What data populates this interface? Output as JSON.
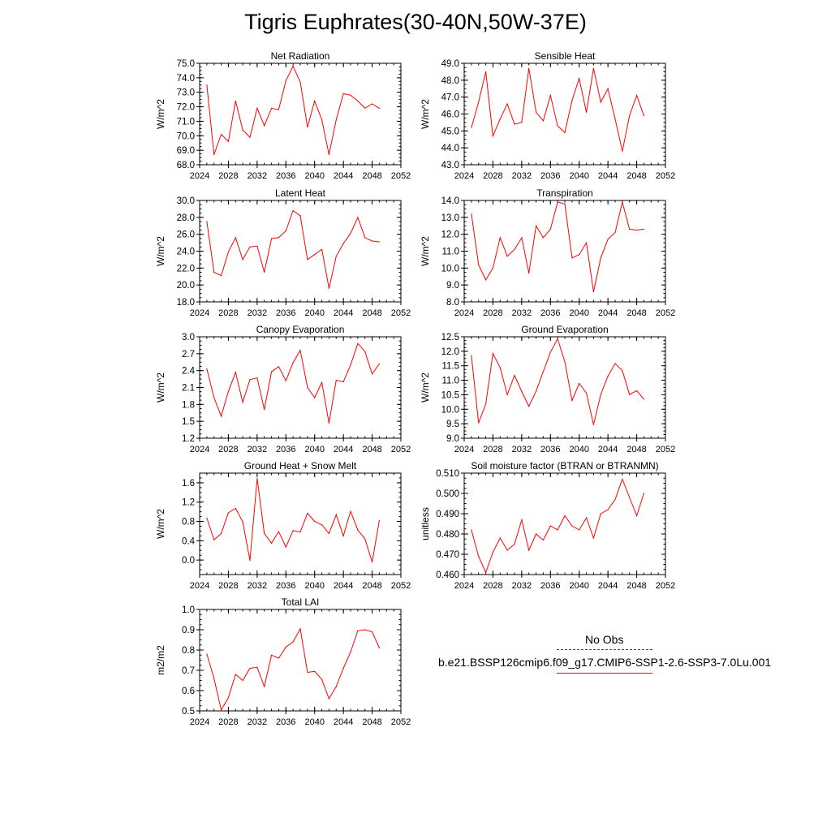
{
  "title": "Tigris Euphrates(30-40N,50W-37E)",
  "legend": {
    "obs_label": "No Obs",
    "obs_color": "#3a3aa0",
    "case_label": "b.e21.BSSP126cmip6.f09_g17.CMIP6-SSP1-2.6-SSP3-7.0Lu.001",
    "case_color": "#ff0000"
  },
  "chart_data": [
    {
      "type": "line",
      "title": "Net Radiation",
      "ylabel": "W/m^2",
      "xlim": [
        2024,
        2052
      ],
      "ylim": [
        68.0,
        75.0
      ],
      "xticks": [
        2024,
        2028,
        2032,
        2036,
        2040,
        2044,
        2048,
        2052
      ],
      "yticks": [
        "68.0",
        "69.0",
        "70.0",
        "71.0",
        "72.0",
        "73.0",
        "74.0",
        "75.0"
      ],
      "x": [
        2025,
        2026,
        2027,
        2028,
        2029,
        2030,
        2031,
        2032,
        2033,
        2034,
        2035,
        2036,
        2037,
        2038,
        2039,
        2040,
        2041,
        2042,
        2043,
        2044,
        2045,
        2046,
        2047,
        2048,
        2049
      ],
      "values": [
        73.5,
        68.7,
        70.1,
        69.6,
        72.4,
        70.4,
        69.9,
        71.9,
        70.7,
        71.9,
        71.8,
        73.8,
        74.8,
        73.7,
        70.6,
        72.4,
        71.1,
        68.7,
        71.1,
        72.9,
        72.8,
        72.4,
        71.9,
        72.2,
        71.9
      ]
    },
    {
      "type": "line",
      "title": "Sensible Heat",
      "ylabel": "W/m^2",
      "xlim": [
        2024,
        2052
      ],
      "ylim": [
        43.0,
        49.0
      ],
      "xticks": [
        2024,
        2028,
        2032,
        2036,
        2040,
        2044,
        2048,
        2052
      ],
      "yticks": [
        "43.0",
        "44.0",
        "45.0",
        "46.0",
        "47.0",
        "48.0",
        "49.0"
      ],
      "x": [
        2025,
        2026,
        2027,
        2028,
        2029,
        2030,
        2031,
        2032,
        2033,
        2034,
        2035,
        2036,
        2037,
        2038,
        2039,
        2040,
        2041,
        2042,
        2043,
        2044,
        2045,
        2046,
        2047,
        2048,
        2049
      ],
      "values": [
        45.2,
        46.7,
        48.5,
        44.7,
        45.7,
        46.6,
        45.4,
        45.5,
        48.7,
        46.1,
        45.6,
        47.1,
        45.3,
        44.9,
        46.8,
        48.1,
        46.1,
        48.7,
        46.7,
        47.5,
        45.7,
        43.8,
        45.9,
        47.1,
        45.9
      ]
    },
    {
      "type": "line",
      "title": "Latent Heat",
      "ylabel": "W/m^2",
      "xlim": [
        2024,
        2052
      ],
      "ylim": [
        18.0,
        30.0
      ],
      "xticks": [
        2024,
        2028,
        2032,
        2036,
        2040,
        2044,
        2048,
        2052
      ],
      "yticks": [
        "18.0",
        "20.0",
        "22.0",
        "24.0",
        "26.0",
        "28.0",
        "30.0"
      ],
      "x": [
        2025,
        2026,
        2027,
        2028,
        2029,
        2030,
        2031,
        2032,
        2033,
        2034,
        2035,
        2036,
        2037,
        2038,
        2039,
        2040,
        2041,
        2042,
        2043,
        2044,
        2045,
        2046,
        2047,
        2048,
        2049
      ],
      "values": [
        27.5,
        21.5,
        21.1,
        23.9,
        25.6,
        23.0,
        24.5,
        24.6,
        21.5,
        25.5,
        25.6,
        26.4,
        28.8,
        28.2,
        23.0,
        23.6,
        24.2,
        19.6,
        23.4,
        24.9,
        26.1,
        28.0,
        25.6,
        25.2,
        25.1
      ]
    },
    {
      "type": "line",
      "title": "Transpiration",
      "ylabel": "W/m^2",
      "xlim": [
        2024,
        2052
      ],
      "ylim": [
        8.0,
        14.0
      ],
      "xticks": [
        2024,
        2028,
        2032,
        2036,
        2040,
        2044,
        2048,
        2052
      ],
      "yticks": [
        "8.0",
        "9.0",
        "10.0",
        "11.0",
        "12.0",
        "13.0",
        "14.0"
      ],
      "x": [
        2025,
        2026,
        2027,
        2028,
        2029,
        2030,
        2031,
        2032,
        2033,
        2034,
        2035,
        2036,
        2037,
        2038,
        2039,
        2040,
        2041,
        2042,
        2043,
        2044,
        2045,
        2046,
        2047,
        2048,
        2049
      ],
      "values": [
        13.2,
        10.2,
        9.3,
        10.0,
        11.8,
        10.7,
        11.1,
        11.8,
        9.7,
        12.5,
        11.8,
        12.3,
        13.9,
        13.8,
        10.6,
        10.8,
        11.5,
        8.6,
        10.6,
        11.7,
        12.1,
        13.9,
        12.3,
        12.25,
        12.3
      ]
    },
    {
      "type": "line",
      "title": "Canopy Evaporation",
      "ylabel": "W/m^2",
      "xlim": [
        2024,
        2052
      ],
      "ylim": [
        1.2,
        3.0
      ],
      "xticks": [
        2024,
        2028,
        2032,
        2036,
        2040,
        2044,
        2048,
        2052
      ],
      "yticks": [
        "1.2",
        "1.5",
        "1.8",
        "2.1",
        "2.4",
        "2.7",
        "3.0"
      ],
      "x": [
        2025,
        2026,
        2027,
        2028,
        2029,
        2030,
        2031,
        2032,
        2033,
        2034,
        2035,
        2036,
        2037,
        2038,
        2039,
        2040,
        2041,
        2042,
        2043,
        2044,
        2045,
        2046,
        2047,
        2048,
        2049
      ],
      "values": [
        2.43,
        1.92,
        1.59,
        2.03,
        2.37,
        1.84,
        2.24,
        2.27,
        1.71,
        2.38,
        2.47,
        2.22,
        2.54,
        2.76,
        2.1,
        1.92,
        2.19,
        1.47,
        2.23,
        2.2,
        2.5,
        2.88,
        2.74,
        2.34,
        2.52
      ]
    },
    {
      "type": "line",
      "title": "Ground Evaporation",
      "ylabel": "W/m^2",
      "xlim": [
        2024,
        2052
      ],
      "ylim": [
        9.0,
        12.5
      ],
      "xticks": [
        2024,
        2028,
        2032,
        2036,
        2040,
        2044,
        2048,
        2052
      ],
      "yticks": [
        "9.0",
        "9.5",
        "10.0",
        "10.5",
        "11.0",
        "11.5",
        "12.0",
        "12.5"
      ],
      "x": [
        2025,
        2026,
        2027,
        2028,
        2029,
        2030,
        2031,
        2032,
        2033,
        2034,
        2035,
        2036,
        2037,
        2038,
        2039,
        2040,
        2041,
        2042,
        2043,
        2044,
        2045,
        2046,
        2047,
        2048,
        2049
      ],
      "values": [
        11.85,
        9.53,
        10.18,
        11.92,
        11.43,
        10.5,
        11.17,
        10.61,
        10.1,
        10.62,
        11.3,
        11.97,
        12.43,
        11.64,
        10.3,
        10.89,
        10.56,
        9.47,
        10.51,
        11.14,
        11.58,
        11.33,
        10.51,
        10.64,
        10.35
      ]
    },
    {
      "type": "line",
      "title": "Ground Heat + Snow Melt",
      "ylabel": "W/m^2",
      "xlim": [
        2024,
        2052
      ],
      "ylim": [
        -0.3,
        1.8
      ],
      "xticks": [
        2024,
        2028,
        2032,
        2036,
        2040,
        2044,
        2048,
        2052
      ],
      "yticks": [
        "0.0",
        "0.4",
        "0.8",
        "1.2",
        "1.6"
      ],
      "ytickvals": [
        0.0,
        0.4,
        0.8,
        1.2,
        1.6
      ],
      "x": [
        2025,
        2026,
        2027,
        2028,
        2029,
        2030,
        2031,
        2032,
        2033,
        2034,
        2035,
        2036,
        2037,
        2038,
        2039,
        2040,
        2041,
        2042,
        2043,
        2044,
        2045,
        2046,
        2047,
        2048,
        2049
      ],
      "values": [
        0.87,
        0.42,
        0.55,
        0.98,
        1.07,
        0.79,
        -0.01,
        1.69,
        0.55,
        0.35,
        0.59,
        0.27,
        0.61,
        0.58,
        0.97,
        0.8,
        0.73,
        0.55,
        0.94,
        0.5,
        1.01,
        0.62,
        0.44,
        -0.04,
        0.82
      ]
    },
    {
      "type": "line",
      "title": "Soil moisture factor (BTRAN or BTRANMN)",
      "ylabel": "unitless",
      "xlim": [
        2024,
        2052
      ],
      "ylim": [
        0.46,
        0.51
      ],
      "xticks": [
        2024,
        2028,
        2032,
        2036,
        2040,
        2044,
        2048,
        2052
      ],
      "yticks": [
        "0.460",
        "0.470",
        "0.480",
        "0.490",
        "0.500",
        "0.510"
      ],
      "x": [
        2025,
        2026,
        2027,
        2028,
        2029,
        2030,
        2031,
        2032,
        2033,
        2034,
        2035,
        2036,
        2037,
        2038,
        2039,
        2040,
        2041,
        2042,
        2043,
        2044,
        2045,
        2046,
        2047,
        2048,
        2049
      ],
      "values": [
        0.482,
        0.469,
        0.461,
        0.471,
        0.478,
        0.472,
        0.475,
        0.487,
        0.472,
        0.48,
        0.477,
        0.484,
        0.482,
        0.489,
        0.484,
        0.482,
        0.488,
        0.478,
        0.49,
        0.492,
        0.497,
        0.507,
        0.498,
        0.489,
        0.5
      ]
    },
    {
      "type": "line",
      "title": "Total LAI",
      "ylabel": "m2/m2",
      "xlim": [
        2024,
        2052
      ],
      "ylim": [
        0.5,
        1.0
      ],
      "xticks": [
        2024,
        2028,
        2032,
        2036,
        2040,
        2044,
        2048,
        2052
      ],
      "yticks": [
        "0.5",
        "0.6",
        "0.7",
        "0.8",
        "0.9",
        "1.0"
      ],
      "x": [
        2025,
        2026,
        2027,
        2028,
        2029,
        2030,
        2031,
        2032,
        2033,
        2034,
        2035,
        2036,
        2037,
        2038,
        2039,
        2040,
        2041,
        2042,
        2043,
        2044,
        2045,
        2046,
        2047,
        2048,
        2049
      ],
      "values": [
        0.78,
        0.66,
        0.505,
        0.565,
        0.68,
        0.65,
        0.71,
        0.715,
        0.62,
        0.775,
        0.76,
        0.815,
        0.84,
        0.905,
        0.69,
        0.695,
        0.655,
        0.56,
        0.62,
        0.71,
        0.79,
        0.895,
        0.9,
        0.89,
        0.81
      ]
    }
  ]
}
